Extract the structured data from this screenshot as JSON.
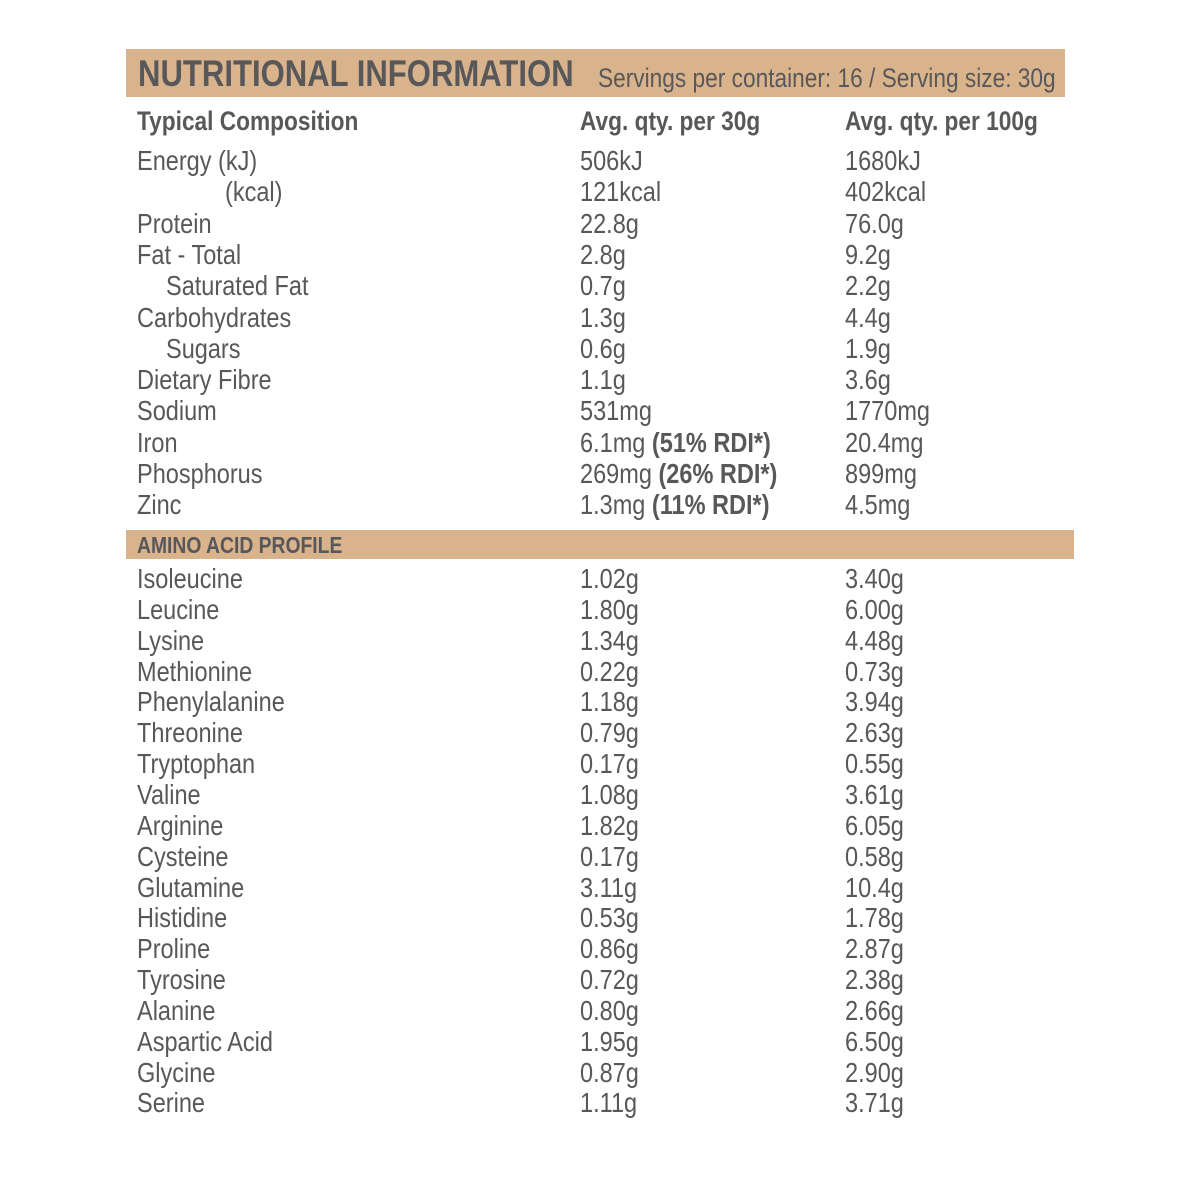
{
  "header": {
    "title": "NUTRITIONAL INFORMATION",
    "servings": "Servings per container: 16 / Serving size: 30g",
    "bar_color": "#d9b38c"
  },
  "columns": {
    "name": "Typical Composition",
    "per_serving": "Avg. qty. per 30g",
    "per_100g": "Avg. qty. per 100g"
  },
  "nutrients": [
    {
      "name": "Energy (kJ)",
      "indent": 0,
      "per_serving": "506kJ",
      "rdi": "",
      "per_100g": "1680kJ"
    },
    {
      "name": "(kcal)",
      "indent": 2,
      "per_serving": "121kcal",
      "rdi": "",
      "per_100g": "402kcal"
    },
    {
      "name": "Protein",
      "indent": 0,
      "per_serving": "22.8g",
      "rdi": "",
      "per_100g": "76.0g"
    },
    {
      "name": "Fat - Total",
      "indent": 0,
      "per_serving": "2.8g",
      "rdi": "",
      "per_100g": "9.2g"
    },
    {
      "name": "Saturated Fat",
      "indent": 1,
      "per_serving": "0.7g",
      "rdi": "",
      "per_100g": "2.2g"
    },
    {
      "name": "Carbohydrates",
      "indent": 0,
      "per_serving": "1.3g",
      "rdi": "",
      "per_100g": "4.4g"
    },
    {
      "name": "Sugars",
      "indent": 1,
      "per_serving": "0.6g",
      "rdi": "",
      "per_100g": "1.9g"
    },
    {
      "name": "Dietary Fibre",
      "indent": 0,
      "per_serving": "1.1g",
      "rdi": "",
      "per_100g": "3.6g"
    },
    {
      "name": "Sodium",
      "indent": 0,
      "per_serving": "531mg",
      "rdi": "",
      "per_100g": "1770mg"
    },
    {
      "name": "Iron",
      "indent": 0,
      "per_serving": "6.1mg",
      "rdi": "(51% RDI*)",
      "per_100g": "20.4mg"
    },
    {
      "name": "Phosphorus",
      "indent": 0,
      "per_serving": "269mg",
      "rdi": "(26% RDI*)",
      "per_100g": "899mg"
    },
    {
      "name": "Zinc",
      "indent": 0,
      "per_serving": "1.3mg",
      "rdi": "(11% RDI*)",
      "per_100g": "4.5mg"
    }
  ],
  "amino": {
    "title": "AMINO ACID PROFILE",
    "rows": [
      [
        "Isoleucine",
        "1.02g",
        "3.40g"
      ],
      [
        "Leucine",
        "1.80g",
        "6.00g"
      ],
      [
        "Lysine",
        "1.34g",
        "4.48g"
      ],
      [
        "Methionine",
        "0.22g",
        "0.73g"
      ],
      [
        "Phenylalanine",
        "1.18g",
        "3.94g"
      ],
      [
        "Threonine",
        "0.79g",
        "2.63g"
      ],
      [
        "Tryptophan",
        "0.17g",
        "0.55g"
      ],
      [
        "Valine",
        "1.08g",
        "3.61g"
      ],
      [
        "Arginine",
        "1.82g",
        "6.05g"
      ],
      [
        "Cysteine",
        "0.17g",
        "0.58g"
      ],
      [
        "Glutamine",
        "3.11g",
        "10.4g"
      ],
      [
        "Histidine",
        "0.53g",
        "1.78g"
      ],
      [
        "Proline",
        "0.86g",
        "2.87g"
      ],
      [
        "Tyrosine",
        "0.72g",
        "2.38g"
      ],
      [
        "Alanine",
        "0.80g",
        "2.66g"
      ],
      [
        "Aspartic Acid",
        "1.95g",
        "6.50g"
      ],
      [
        "Glycine",
        "0.87g",
        "2.90g"
      ],
      [
        "Serine",
        "1.11g",
        "3.71g"
      ]
    ]
  }
}
